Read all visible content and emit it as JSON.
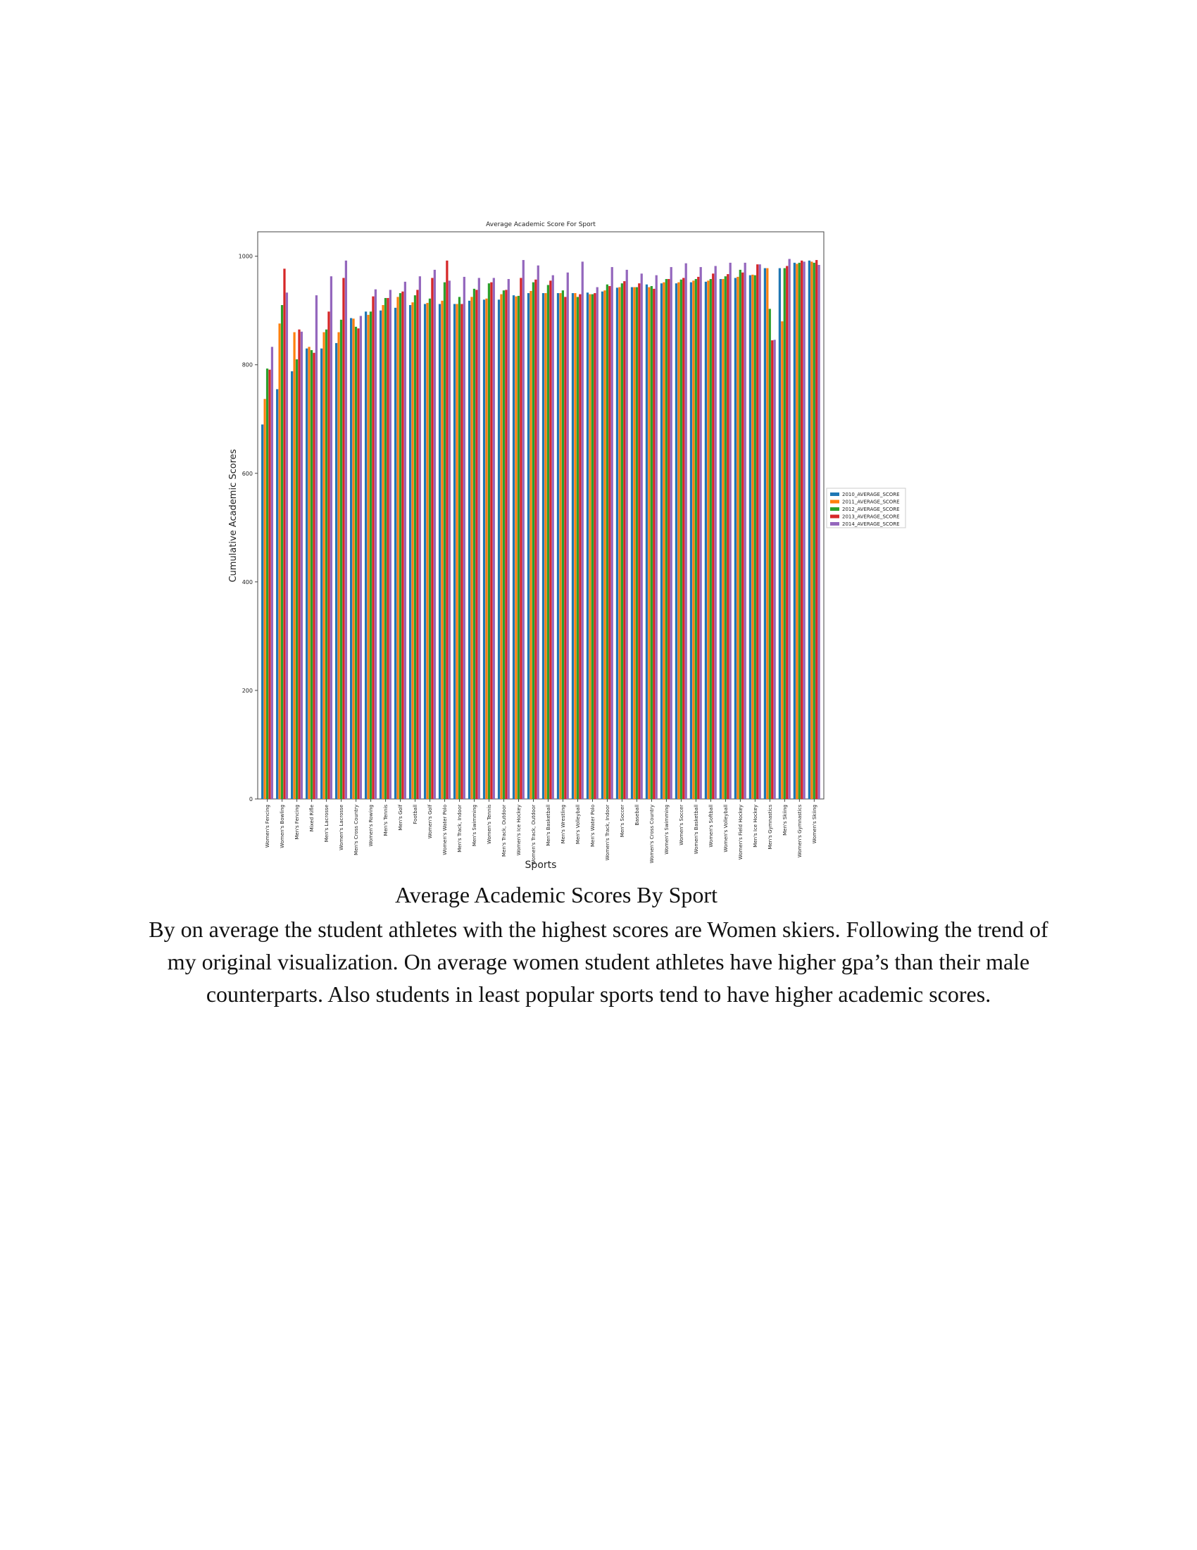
{
  "chart_data": {
    "type": "bar",
    "title": "Average Academic Score For Sport",
    "xlabel": "Sports",
    "ylabel": "Cumulative Academic Scores",
    "ylim": [
      0,
      1045
    ],
    "yticks": [
      0,
      200,
      400,
      600,
      800,
      1000
    ],
    "legend_position": "outside-right",
    "grid": false,
    "categories": [
      "Women's Fencing",
      "Women's Bowling",
      "Men's Fencing",
      "Mixed Rifle",
      "Men's Lacrosse",
      "Women's Lacrosse",
      "Men's Cross Country",
      "Women's Rowing",
      "Men's Tennis",
      "Men's Golf",
      "Football",
      "Women's Golf",
      "Women's Water Polo",
      "Men's Track, Indoor",
      "Men's Swimming",
      "Women's Tennis",
      "Men's Track, Outdoor",
      "Women's Ice Hockey",
      "Women's Track, Outdoor",
      "Men's Basketball",
      "Men's Wrestling",
      "Men's Volleyball",
      "Men's Water Polo",
      "Women's Track, Indoor",
      "Men's Soccer",
      "Baseball",
      "Women's Cross Country",
      "Women's Swimming",
      "Women's Soccer",
      "Women's Basketball",
      "Women's Softball",
      "Women's Volleyball",
      "Women's Field Hockey",
      "Men's Ice Hockey",
      "Men's Gymnastics",
      "Men's Skiing",
      "Women's Gymnastics",
      "Women's Skiing"
    ],
    "series": [
      {
        "name": "2010_AVERAGE_SCORE",
        "color": "#1f77b4",
        "values": [
          690,
          755,
          788,
          830,
          830,
          840,
          886,
          898,
          900,
          905,
          910,
          912,
          912,
          912,
          918,
          920,
          920,
          928,
          932,
          932,
          932,
          932,
          933,
          935,
          942,
          943,
          948,
          950,
          950,
          952,
          953,
          958,
          960,
          965,
          978,
          978,
          988,
          992
        ]
      },
      {
        "name": "2011_AVERAGE_SCORE",
        "color": "#ff7f0e",
        "values": [
          737,
          876,
          860,
          833,
          860,
          860,
          885,
          892,
          910,
          925,
          915,
          914,
          918,
          912,
          925,
          922,
          930,
          926,
          936,
          932,
          932,
          932,
          930,
          937,
          943,
          943,
          943,
          952,
          952,
          955,
          955,
          958,
          962,
          966,
          978,
          880,
          986,
          990
        ]
      },
      {
        "name": "2012_AVERAGE_SCORE",
        "color": "#2ca02c",
        "values": [
          793,
          910,
          810,
          827,
          865,
          883,
          870,
          898,
          923,
          932,
          928,
          922,
          952,
          925,
          940,
          950,
          937,
          927,
          952,
          947,
          937,
          925,
          930,
          948,
          950,
          943,
          945,
          958,
          957,
          958,
          958,
          963,
          975,
          965,
          903,
          978,
          988,
          988
        ]
      },
      {
        "name": "2013_AVERAGE_SCORE",
        "color": "#d62728",
        "values": [
          791,
          977,
          865,
          822,
          898,
          960,
          867,
          926,
          923,
          935,
          938,
          960,
          992,
          912,
          938,
          952,
          938,
          960,
          957,
          955,
          925,
          930,
          932,
          945,
          954,
          950,
          940,
          958,
          960,
          962,
          968,
          967,
          970,
          985,
          845,
          982,
          992,
          993
        ]
      },
      {
        "name": "2014_AVERAGE_SCORE",
        "color": "#9467bd",
        "values": [
          833,
          933,
          861,
          928,
          963,
          992,
          890,
          939,
          938,
          953,
          963,
          975,
          955,
          962,
          960,
          960,
          958,
          993,
          983,
          965,
          970,
          990,
          943,
          980,
          975,
          968,
          965,
          980,
          987,
          980,
          982,
          988,
          988,
          985,
          846,
          995,
          990,
          984
        ]
      }
    ]
  },
  "caption": {
    "title": "Average Academic Scores By Sport",
    "body": "By on average the student athletes with the highest scores are Women skiers.  Following the trend of my original visualization. On average women student athletes have higher gpa’s than their male counterparts. Also students in least popular sports tend to have higher academic scores."
  }
}
